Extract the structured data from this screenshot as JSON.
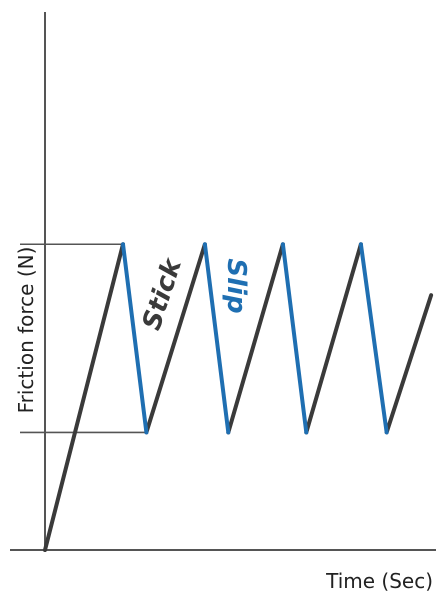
{
  "chart_data": {
    "type": "line",
    "xlabel": "Time (Sec)",
    "ylabel": "Friction force (N)",
    "grid": false,
    "legend": "none",
    "colors": {
      "stick": "#3a3a3a",
      "slip": "#1f6fb2",
      "axis": "#555555"
    },
    "levels": {
      "static": 0.78,
      "dynamic": 0.3
    },
    "stick_segments": [
      [
        [
          0,
          0
        ],
        [
          1.0,
          0.78
        ]
      ],
      [
        [
          1.3,
          0.3
        ],
        [
          2.05,
          0.78
        ]
      ],
      [
        [
          2.35,
          0.3
        ],
        [
          3.05,
          0.78
        ]
      ],
      [
        [
          3.35,
          0.3
        ],
        [
          4.05,
          0.78
        ]
      ],
      [
        [
          4.38,
          0.3
        ],
        [
          4.95,
          0.65
        ]
      ]
    ],
    "slip_segments": [
      [
        [
          1.0,
          0.78
        ],
        [
          1.3,
          0.3
        ]
      ],
      [
        [
          2.05,
          0.78
        ],
        [
          2.35,
          0.3
        ]
      ],
      [
        [
          3.05,
          0.78
        ],
        [
          3.35,
          0.3
        ]
      ],
      [
        [
          4.05,
          0.78
        ],
        [
          4.38,
          0.3
        ]
      ]
    ],
    "annotations": [
      {
        "text": "Stick",
        "series": "stick"
      },
      {
        "text": "Slip",
        "series": "slip"
      }
    ]
  }
}
